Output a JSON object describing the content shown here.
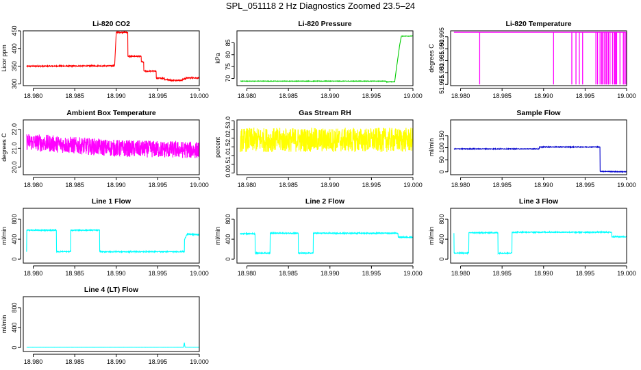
{
  "page": {
    "title": "SPL_051118  2 Hz Diagnostics Zoomed 23.5–24"
  },
  "chart_data": [
    {
      "id": "co2",
      "type": "line",
      "title": "Li-820 CO2",
      "ylabel": "Licor ppm",
      "color": "#ff0000",
      "xlim": [
        18.9788,
        19.0
      ],
      "ylim": [
        295,
        450
      ],
      "xticks": [
        "18.980",
        "18.985",
        "18.990",
        "18.995",
        "19.000"
      ],
      "xtick_values": [
        18.98,
        18.985,
        18.99,
        18.995,
        19.0
      ],
      "yticks": [
        "300",
        "350",
        "400",
        "450"
      ],
      "ytick_values": [
        300,
        350,
        400,
        450
      ],
      "series": [
        {
          "x": [
            18.9792,
            18.9898,
            18.9898,
            18.99,
            18.99,
            18.9914,
            18.9914,
            18.993,
            18.993,
            18.9933,
            18.9933,
            18.9948,
            18.9948,
            18.9958,
            18.9958,
            18.9965,
            18.9965,
            18.998,
            18.998,
            18.9984,
            18.9984,
            19.0
          ],
          "y": [
            350,
            351,
            352,
            446,
            446,
            446,
            378,
            378,
            362,
            362,
            336,
            336,
            316,
            316,
            312,
            312,
            310,
            310,
            314,
            314,
            317,
            317
          ],
          "noise": 1.5
        }
      ]
    },
    {
      "id": "pressure",
      "type": "line",
      "title": "Li-820 Pressure",
      "ylabel": "kPa",
      "color": "#00cc00",
      "xlim": [
        18.9788,
        19.0
      ],
      "ylim": [
        67,
        90
      ],
      "xticks": [
        "18.980",
        "18.985",
        "18.990",
        "18.995",
        "19.000"
      ],
      "xtick_values": [
        18.98,
        18.985,
        18.99,
        18.995,
        19.0
      ],
      "yticks": [
        "70",
        "75",
        "80",
        "85"
      ],
      "ytick_values": [
        70,
        75,
        80,
        85
      ],
      "series": [
        {
          "x": [
            18.9792,
            18.9968,
            18.9968,
            18.9978,
            18.998,
            18.9982,
            18.9984,
            18.9986,
            19.0
          ],
          "y": [
            68.9,
            68.9,
            68.6,
            68.6,
            74,
            79,
            84,
            87.8,
            87.8
          ],
          "noise": 0.1
        }
      ]
    },
    {
      "id": "li820_temp",
      "type": "line",
      "title": "Li-820 Temperature",
      "ylabel": "degrees C",
      "color": "#ff00ff",
      "xlim": [
        18.9788,
        19.0
      ],
      "ylim": [
        51.9745,
        51.9975
      ],
      "xticks": [
        "18.980",
        "18.985",
        "18.990",
        "18.995",
        "19.000"
      ],
      "xtick_values": [
        18.98,
        18.985,
        18.99,
        18.995,
        19.0
      ],
      "yticks": [
        "51.975",
        "51.980",
        "51.985",
        "51.990",
        "51.995"
      ],
      "ytick_values": [
        51.975,
        51.98,
        51.985,
        51.99,
        51.995
      ],
      "baseline": 51.9969,
      "drop_value": 51.975,
      "drops": [
        18.9823,
        18.9968,
        18.9975,
        18.9978,
        18.9983,
        18.9985,
        18.9987,
        18.9997,
        18.9912,
        18.9934,
        18.9939,
        18.9943,
        18.9947,
        18.9963,
        18.9965,
        18.997,
        18.9971,
        18.9973,
        18.9976,
        18.9978,
        18.998,
        18.9986,
        18.9988,
        18.9992,
        18.9996,
        18.9999
      ]
    },
    {
      "id": "box_temp",
      "type": "line",
      "title": "Ambient Box Temperature",
      "ylabel": "degrees C",
      "color": "#ff00ff",
      "xlim": [
        18.9788,
        19.0
      ],
      "ylim": [
        19.6,
        22.5
      ],
      "xticks": [
        "18.980",
        "18.985",
        "18.990",
        "18.995",
        "19.000"
      ],
      "xtick_values": [
        18.98,
        18.985,
        18.99,
        18.995,
        19.0
      ],
      "yticks": [
        "20.0",
        "21.0",
        "22.0"
      ],
      "ytick_values": [
        20.0,
        21.0,
        22.0
      ],
      "series": [
        {
          "x": [
            18.9792,
            18.985,
            18.99,
            18.995,
            19.0
          ],
          "y": [
            21.35,
            21.15,
            21.0,
            20.95,
            20.9
          ],
          "noise": 0.45
        }
      ]
    },
    {
      "id": "rh",
      "type": "line",
      "title": "Gas Stream RH",
      "ylabel": "percent",
      "color": "#ffff00",
      "xlim": [
        18.9788,
        19.0
      ],
      "ylim": [
        -0.1,
        3.05
      ],
      "xticks": [
        "18.980",
        "18.985",
        "18.990",
        "18.995",
        "19.000"
      ],
      "xtick_values": [
        18.98,
        18.985,
        18.99,
        18.995,
        19.0
      ],
      "yticks": [
        "0.0",
        "0.5",
        "1.0",
        "1.5",
        "2.0",
        "2.5",
        "3.0"
      ],
      "ytick_values": [
        0,
        0.5,
        1.0,
        1.5,
        2.0,
        2.5,
        3.0
      ],
      "series": [
        {
          "x": [
            18.9792,
            19.0
          ],
          "y": [
            1.9,
            1.9
          ],
          "noise": 0.7
        }
      ]
    },
    {
      "id": "sample_flow",
      "type": "line",
      "title": "Sample Flow",
      "ylabel": "ml/min",
      "color": "#0000cc",
      "xlim": [
        18.9788,
        19.0
      ],
      "ylim": [
        -12,
        215
      ],
      "xticks": [
        "18.980",
        "18.985",
        "18.990",
        "18.995",
        "19.000"
      ],
      "xtick_values": [
        18.98,
        18.985,
        18.99,
        18.995,
        19.0
      ],
      "yticks": [
        "0",
        "50",
        "100",
        "150"
      ],
      "ytick_values": [
        0,
        50,
        100,
        150
      ],
      "series": [
        {
          "x": [
            18.9792,
            18.9895,
            18.9895,
            18.9968,
            18.9968,
            19.0
          ],
          "y": [
            95,
            95,
            103,
            103,
            2,
            0
          ],
          "noise": 1.5
        }
      ]
    },
    {
      "id": "line1",
      "type": "line",
      "title": "Line 1 Flow",
      "ylabel": "ml/min",
      "color": "#00ffff",
      "xlim": [
        18.9788,
        19.0
      ],
      "ylim": [
        -80,
        1020
      ],
      "xticks": [
        "18.980",
        "18.985",
        "18.990",
        "18.995",
        "19.000"
      ],
      "xtick_values": [
        18.98,
        18.985,
        18.99,
        18.995,
        19.0
      ],
      "yticks": [
        "0",
        "400",
        "800"
      ],
      "ytick_values": [
        0,
        400,
        800
      ],
      "series": [
        {
          "x": [
            18.9792,
            18.9792,
            18.9828,
            18.9828,
            18.9845,
            18.9845,
            18.988,
            18.988,
            18.9982,
            18.9982,
            18.9985,
            19.0
          ],
          "y": [
            150,
            580,
            580,
            150,
            150,
            580,
            580,
            150,
            150,
            380,
            500,
            490
          ],
          "noise": 10
        }
      ]
    },
    {
      "id": "line2",
      "type": "line",
      "title": "Line 2 Flow",
      "ylabel": "ml/min",
      "color": "#00ffff",
      "xlim": [
        18.9788,
        19.0
      ],
      "ylim": [
        -80,
        1020
      ],
      "xticks": [
        "18.980",
        "18.985",
        "18.990",
        "18.995",
        "19.000"
      ],
      "xtick_values": [
        18.98,
        18.985,
        18.99,
        18.995,
        19.0
      ],
      "yticks": [
        "0",
        "400",
        "800"
      ],
      "ytick_values": [
        0,
        400,
        800
      ],
      "series": [
        {
          "x": [
            18.9792,
            18.981,
            18.981,
            18.9828,
            18.9828,
            18.9862,
            18.9862,
            18.988,
            18.988,
            18.9982,
            18.9982,
            19.0
          ],
          "y": [
            510,
            510,
            120,
            120,
            520,
            520,
            120,
            120,
            520,
            520,
            440,
            440
          ],
          "noise": 10
        }
      ]
    },
    {
      "id": "line3",
      "type": "line",
      "title": "Line 3 Flow",
      "ylabel": "ml/min",
      "color": "#00ffff",
      "xlim": [
        18.9788,
        19.0
      ],
      "ylim": [
        -80,
        1020
      ],
      "xticks": [
        "18.980",
        "18.985",
        "18.990",
        "18.995",
        "19.000"
      ],
      "xtick_values": [
        18.98,
        18.985,
        18.99,
        18.995,
        19.0
      ],
      "yticks": [
        "0",
        "400",
        "800"
      ],
      "ytick_values": [
        0,
        400,
        800
      ],
      "series": [
        {
          "x": [
            18.9792,
            18.9792,
            18.981,
            18.981,
            18.9845,
            18.9845,
            18.9862,
            18.9862,
            18.9982,
            18.9982,
            19.0
          ],
          "y": [
            520,
            120,
            120,
            530,
            530,
            120,
            120,
            540,
            540,
            450,
            450
          ],
          "noise": 10
        }
      ]
    },
    {
      "id": "line4",
      "type": "line",
      "title": "Line 4 (LT) Flow",
      "ylabel": "ml/min",
      "color": "#00ffff",
      "xlim": [
        18.9788,
        19.0
      ],
      "ylim": [
        -80,
        1020
      ],
      "xticks": [
        "18.980",
        "18.985",
        "18.990",
        "18.995",
        "19.000"
      ],
      "xtick_values": [
        18.98,
        18.985,
        18.99,
        18.995,
        19.0
      ],
      "yticks": [
        "0",
        "400",
        "800"
      ],
      "ytick_values": [
        0,
        400,
        800
      ],
      "series": [
        {
          "x": [
            18.9792,
            18.9981,
            18.9982,
            18.99825,
            18.9983,
            19.0
          ],
          "y": [
            5,
            5,
            100,
            30,
            5,
            5
          ],
          "noise": 1
        }
      ]
    }
  ]
}
